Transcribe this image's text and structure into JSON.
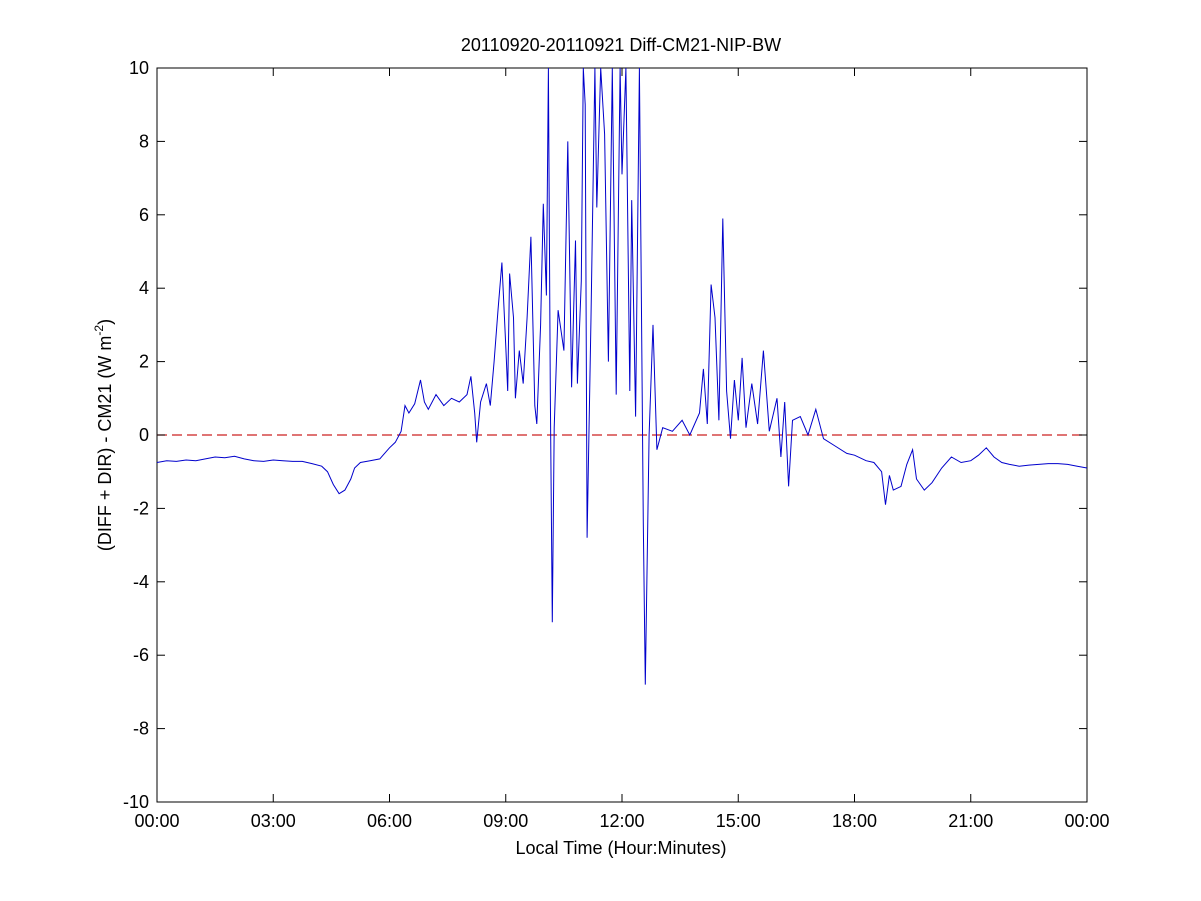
{
  "chart_data": {
    "type": "line",
    "title": "20110920-20110921 Diff-CM21-NIP-BW",
    "xlabel": "Local Time (Hour:Minutes)",
    "ylabel": {
      "before_sup": "(DIFF + DIR) - CM21 (W m",
      "sup": "-2",
      "after_sup": ")"
    },
    "xlim": [
      0,
      24
    ],
    "ylim": [
      -10,
      10
    ],
    "x_ticks": [
      {
        "value": 0,
        "label": "00:00"
      },
      {
        "value": 3,
        "label": "03:00"
      },
      {
        "value": 6,
        "label": "06:00"
      },
      {
        "value": 9,
        "label": "09:00"
      },
      {
        "value": 12,
        "label": "12:00"
      },
      {
        "value": 15,
        "label": "15:00"
      },
      {
        "value": 18,
        "label": "18:00"
      },
      {
        "value": 21,
        "label": "21:00"
      },
      {
        "value": 24,
        "label": "00:00"
      }
    ],
    "y_ticks": [
      {
        "value": 10,
        "label": "10"
      },
      {
        "value": 8,
        "label": "8"
      },
      {
        "value": 6,
        "label": "6"
      },
      {
        "value": 4,
        "label": "4"
      },
      {
        "value": 2,
        "label": "2"
      },
      {
        "value": 0,
        "label": "0"
      },
      {
        "value": -2,
        "label": "-2"
      },
      {
        "value": -4,
        "label": "-4"
      },
      {
        "value": -6,
        "label": "-6"
      },
      {
        "value": -8,
        "label": "-8"
      },
      {
        "value": -10,
        "label": "-10"
      }
    ],
    "grid": false,
    "colors": {
      "series": "#0000cc",
      "reference": "#cc2222"
    },
    "reference_line": {
      "y": 0,
      "style": "dashed"
    },
    "series": [
      {
        "points": [
          [
            0.0,
            -0.75
          ],
          [
            0.25,
            -0.7
          ],
          [
            0.5,
            -0.72
          ],
          [
            0.75,
            -0.68
          ],
          [
            1.0,
            -0.7
          ],
          [
            1.25,
            -0.65
          ],
          [
            1.5,
            -0.6
          ],
          [
            1.75,
            -0.62
          ],
          [
            2.0,
            -0.58
          ],
          [
            2.25,
            -0.65
          ],
          [
            2.5,
            -0.7
          ],
          [
            2.75,
            -0.72
          ],
          [
            3.0,
            -0.68
          ],
          [
            3.25,
            -0.7
          ],
          [
            3.5,
            -0.72
          ],
          [
            3.75,
            -0.72
          ],
          [
            4.0,
            -0.78
          ],
          [
            4.25,
            -0.85
          ],
          [
            4.4,
            -1.0
          ],
          [
            4.55,
            -1.35
          ],
          [
            4.7,
            -1.6
          ],
          [
            4.85,
            -1.5
          ],
          [
            5.0,
            -1.2
          ],
          [
            5.1,
            -0.9
          ],
          [
            5.25,
            -0.75
          ],
          [
            5.5,
            -0.7
          ],
          [
            5.75,
            -0.65
          ],
          [
            6.0,
            -0.35
          ],
          [
            6.15,
            -0.2
          ],
          [
            6.3,
            0.1
          ],
          [
            6.4,
            0.8
          ],
          [
            6.5,
            0.6
          ],
          [
            6.65,
            0.85
          ],
          [
            6.8,
            1.5
          ],
          [
            6.9,
            0.9
          ],
          [
            7.0,
            0.7
          ],
          [
            7.2,
            1.1
          ],
          [
            7.4,
            0.8
          ],
          [
            7.6,
            1.0
          ],
          [
            7.8,
            0.9
          ],
          [
            8.0,
            1.1
          ],
          [
            8.1,
            1.6
          ],
          [
            8.2,
            0.6
          ],
          [
            8.25,
            -0.2
          ],
          [
            8.35,
            0.9
          ],
          [
            8.5,
            1.4
          ],
          [
            8.6,
            0.8
          ],
          [
            8.7,
            2.0
          ],
          [
            8.8,
            3.4
          ],
          [
            8.9,
            4.7
          ],
          [
            9.0,
            2.4
          ],
          [
            9.05,
            1.2
          ],
          [
            9.1,
            4.4
          ],
          [
            9.2,
            3.2
          ],
          [
            9.25,
            1.0
          ],
          [
            9.35,
            2.3
          ],
          [
            9.45,
            1.4
          ],
          [
            9.55,
            3.2
          ],
          [
            9.65,
            5.4
          ],
          [
            9.75,
            0.8
          ],
          [
            9.8,
            0.3
          ],
          [
            9.9,
            3.0
          ],
          [
            9.97,
            6.3
          ],
          [
            10.05,
            3.8
          ],
          [
            10.1,
            10.0
          ],
          [
            10.15,
            1.2
          ],
          [
            10.2,
            -5.1
          ],
          [
            10.25,
            0.2
          ],
          [
            10.35,
            3.4
          ],
          [
            10.5,
            2.3
          ],
          [
            10.6,
            8.0
          ],
          [
            10.7,
            1.3
          ],
          [
            10.8,
            5.3
          ],
          [
            10.85,
            1.4
          ],
          [
            10.95,
            4.2
          ],
          [
            11.0,
            10.0
          ],
          [
            11.05,
            9.0
          ],
          [
            11.1,
            -2.8
          ],
          [
            11.2,
            3.2
          ],
          [
            11.3,
            10.0
          ],
          [
            11.35,
            6.2
          ],
          [
            11.45,
            10.0
          ],
          [
            11.55,
            8.2
          ],
          [
            11.65,
            2.0
          ],
          [
            11.75,
            10.0
          ],
          [
            11.85,
            1.1
          ],
          [
            11.95,
            10.0
          ],
          [
            12.0,
            7.1
          ],
          [
            12.1,
            10.0
          ],
          [
            12.2,
            1.2
          ],
          [
            12.25,
            6.4
          ],
          [
            12.35,
            0.5
          ],
          [
            12.45,
            10.0
          ],
          [
            12.55,
            -2.4
          ],
          [
            12.6,
            -6.8
          ],
          [
            12.7,
            0.0
          ],
          [
            12.8,
            3.0
          ],
          [
            12.9,
            -0.4
          ],
          [
            13.05,
            0.2
          ],
          [
            13.3,
            0.1
          ],
          [
            13.55,
            0.4
          ],
          [
            13.75,
            0.0
          ],
          [
            14.0,
            0.6
          ],
          [
            14.1,
            1.8
          ],
          [
            14.2,
            0.3
          ],
          [
            14.3,
            4.1
          ],
          [
            14.4,
            3.2
          ],
          [
            14.5,
            0.4
          ],
          [
            14.6,
            5.9
          ],
          [
            14.7,
            1.2
          ],
          [
            14.8,
            -0.1
          ],
          [
            14.9,
            1.5
          ],
          [
            15.0,
            0.4
          ],
          [
            15.1,
            2.1
          ],
          [
            15.2,
            0.2
          ],
          [
            15.35,
            1.4
          ],
          [
            15.5,
            0.3
          ],
          [
            15.65,
            2.3
          ],
          [
            15.8,
            0.1
          ],
          [
            16.0,
            1.0
          ],
          [
            16.1,
            -0.6
          ],
          [
            16.2,
            0.9
          ],
          [
            16.3,
            -1.4
          ],
          [
            16.4,
            0.4
          ],
          [
            16.6,
            0.5
          ],
          [
            16.8,
            0.0
          ],
          [
            17.0,
            0.7
          ],
          [
            17.2,
            -0.1
          ],
          [
            17.5,
            -0.3
          ],
          [
            17.8,
            -0.5
          ],
          [
            18.0,
            -0.55
          ],
          [
            18.3,
            -0.7
          ],
          [
            18.5,
            -0.75
          ],
          [
            18.7,
            -1.0
          ],
          [
            18.8,
            -1.9
          ],
          [
            18.9,
            -1.1
          ],
          [
            19.0,
            -1.5
          ],
          [
            19.2,
            -1.4
          ],
          [
            19.35,
            -0.8
          ],
          [
            19.5,
            -0.4
          ],
          [
            19.6,
            -1.2
          ],
          [
            19.8,
            -1.5
          ],
          [
            20.0,
            -1.3
          ],
          [
            20.25,
            -0.9
          ],
          [
            20.5,
            -0.6
          ],
          [
            20.75,
            -0.75
          ],
          [
            21.0,
            -0.7
          ],
          [
            21.2,
            -0.55
          ],
          [
            21.4,
            -0.35
          ],
          [
            21.6,
            -0.6
          ],
          [
            21.8,
            -0.75
          ],
          [
            22.0,
            -0.8
          ],
          [
            22.25,
            -0.85
          ],
          [
            22.5,
            -0.82
          ],
          [
            22.75,
            -0.8
          ],
          [
            23.0,
            -0.78
          ],
          [
            23.25,
            -0.78
          ],
          [
            23.5,
            -0.8
          ],
          [
            23.75,
            -0.85
          ],
          [
            24.0,
            -0.9
          ]
        ]
      }
    ]
  }
}
